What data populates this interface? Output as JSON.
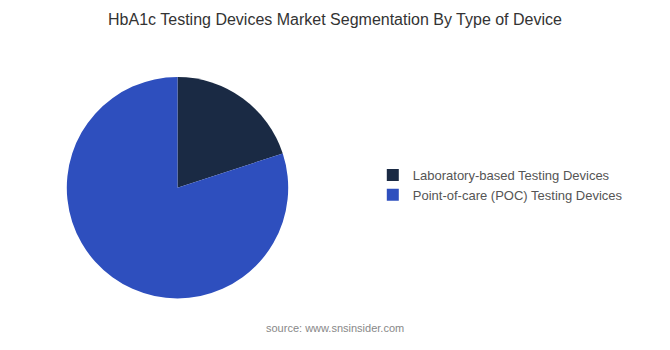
{
  "chart_data": {
    "type": "pie",
    "title": "HbA1c Testing Devices Market Segmentation By Type of Device",
    "categories": [
      "Laboratory-based Testing Devices",
      "Point-of-care (POC) Testing Devices"
    ],
    "values": [
      20,
      80
    ],
    "colors": [
      "#1a2a44",
      "#2e4fbe"
    ],
    "annotations": [
      "source: www.snsinsider.com"
    ],
    "legend": "right"
  }
}
